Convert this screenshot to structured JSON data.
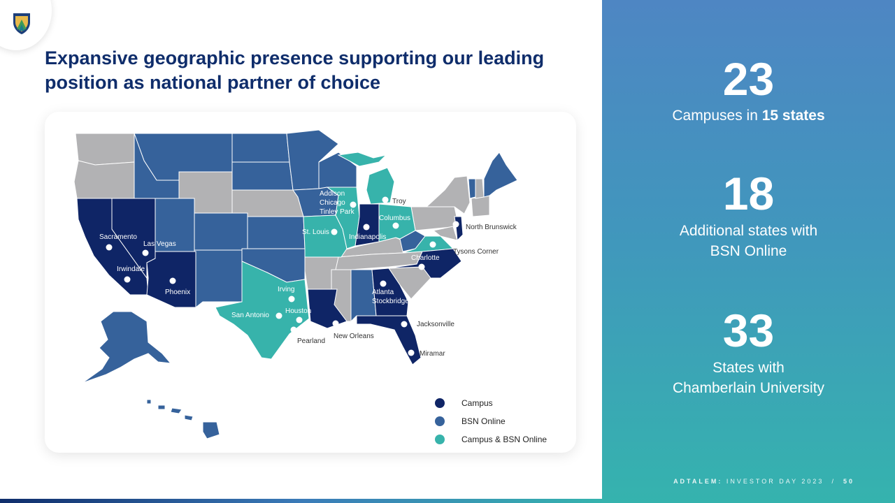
{
  "title": "Expansive geographic presence supporting our leading position as national partner of choice",
  "colors": {
    "campus": "#0f2566",
    "bsn_online": "#36629b",
    "campus_bsn_online": "#37b3ab",
    "no_presence": "#b2b2b4",
    "accent": "#0f2d6b"
  },
  "legend": [
    {
      "label": "Campus",
      "color": "#0f2566"
    },
    {
      "label": "BSN Online",
      "color": "#36629b"
    },
    {
      "label": "Campus & BSN Online",
      "color": "#37b3ab"
    }
  ],
  "map": {
    "cities": [
      {
        "label": "Sacramento"
      },
      {
        "label": "Las Vegas"
      },
      {
        "label": "Irwindale"
      },
      {
        "label": "Phoenix"
      },
      {
        "label": "Irving"
      },
      {
        "label": "San Antonio"
      },
      {
        "label": "Houston"
      },
      {
        "label": "Pearland"
      },
      {
        "label": "New Orleans"
      },
      {
        "label": "St. Louis"
      },
      {
        "label": "Addison"
      },
      {
        "label": "Chicago"
      },
      {
        "label": "Tinley Park"
      },
      {
        "label": "Indianapolis"
      },
      {
        "label": "Troy"
      },
      {
        "label": "Columbus"
      },
      {
        "label": "Atlanta"
      },
      {
        "label": "Stockbridge"
      },
      {
        "label": "Charlotte"
      },
      {
        "label": "Jacksonville"
      },
      {
        "label": "Miramar"
      },
      {
        "label": "Tysons Corner"
      },
      {
        "label": "North Brunswick"
      }
    ]
  },
  "stats": [
    {
      "number": "23",
      "line1_prefix": "Campuses in ",
      "line1_bold": "15 states",
      "line2": ""
    },
    {
      "number": "18",
      "line1_prefix": "Additional states with",
      "line1_bold": "",
      "line2": "BSN Online"
    },
    {
      "number": "33",
      "line1_prefix": "States with",
      "line1_bold": "",
      "line2": "Chamberlain University"
    }
  ],
  "footer": {
    "brand": "ADTALEM:",
    "event": " INVESTOR DAY 2023",
    "separator": "/",
    "page": "50"
  }
}
